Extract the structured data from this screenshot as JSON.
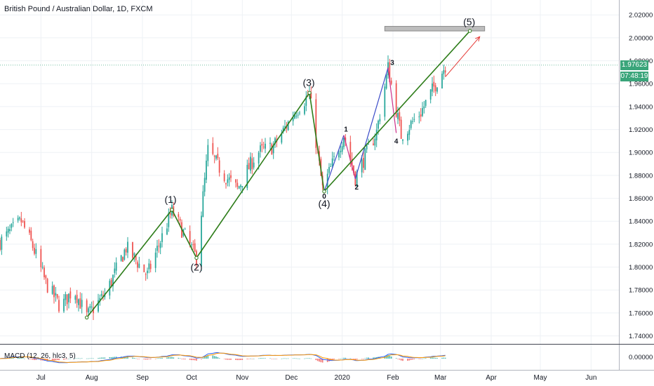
{
  "header": {
    "title": "British Pound / Australian Dollar, 1D, FXCM"
  },
  "price_tags": {
    "last_price": "1.97623",
    "countdown": "07:48:19"
  },
  "macd": {
    "label": "MACD (12, 26, hlc3, 5)",
    "zero_tick": "0.00000"
  },
  "colors": {
    "up": "#26a69a",
    "down": "#ef5350",
    "wave": "#2e7d1a",
    "sub_wave": "#3b4bc8",
    "sub_wave_pink": "#cc2e8a",
    "target_arrow": "#e53935",
    "price_badge": "#3aa57a",
    "macd_line": "#2962ff",
    "signal_line": "#ff9800"
  },
  "chart_data": {
    "type": "candlestick",
    "title": "British Pound / Australian Dollar, 1D, FXCM",
    "x_axis_ticks": [
      {
        "label": "Jul",
        "x": 0
      },
      {
        "label": "Aug",
        "x": 31
      },
      {
        "label": "Sep",
        "x": 62
      },
      {
        "label": "Oct",
        "x": 92
      },
      {
        "label": "Nov",
        "x": 123
      },
      {
        "label": "Dec",
        "x": 153
      },
      {
        "label": "2020",
        "x": 184
      },
      {
        "label": "Feb",
        "x": 215
      },
      {
        "label": "Mar",
        "x": 244
      },
      {
        "label": "Apr",
        "x": 275
      },
      {
        "label": "May",
        "x": 305
      },
      {
        "label": "Jun",
        "x": 336
      }
    ],
    "y_axis_ticks": [
      "2.02000",
      "2.00000",
      "1.98000",
      "1.96000",
      "1.94000",
      "1.92000",
      "1.90000",
      "1.88000",
      "1.86000",
      "1.84000",
      "1.82000",
      "1.80000",
      "1.78000",
      "1.76000",
      "1.74000"
    ],
    "ylim": [
      1.733,
      2.033
    ],
    "xlim": [
      -25,
      353
    ],
    "price_path": [
      {
        "x": -25,
        "y": 1.822
      },
      {
        "x": -12,
        "y": 1.84
      },
      {
        "x": -5,
        "y": 1.818
      },
      {
        "x": 3,
        "y": 1.786
      },
      {
        "x": 12,
        "y": 1.765
      },
      {
        "x": 20,
        "y": 1.781
      },
      {
        "x": 28,
        "y": 1.757
      },
      {
        "x": 40,
        "y": 1.778
      },
      {
        "x": 52,
        "y": 1.817
      },
      {
        "x": 65,
        "y": 1.793
      },
      {
        "x": 80,
        "y": 1.849
      },
      {
        "x": 95,
        "y": 1.808
      },
      {
        "x": 102,
        "y": 1.902
      },
      {
        "x": 112,
        "y": 1.88
      },
      {
        "x": 120,
        "y": 1.868
      },
      {
        "x": 132,
        "y": 1.9
      },
      {
        "x": 142,
        "y": 1.905
      },
      {
        "x": 155,
        "y": 1.935
      },
      {
        "x": 164,
        "y": 1.951
      },
      {
        "x": 172,
        "y": 1.868
      },
      {
        "x": 185,
        "y": 1.915
      },
      {
        "x": 192,
        "y": 1.878
      },
      {
        "x": 205,
        "y": 1.918
      },
      {
        "x": 212,
        "y": 1.974
      },
      {
        "x": 220,
        "y": 1.915
      },
      {
        "x": 232,
        "y": 1.935
      },
      {
        "x": 247,
        "y": 1.976
      }
    ],
    "wave_count": {
      "points": [
        {
          "label": "",
          "x": 28,
          "y": 1.756
        },
        {
          "label": "(1)",
          "x": 80,
          "y": 1.85
        },
        {
          "label": "(2)",
          "x": 95,
          "y": 1.808
        },
        {
          "label": "(3)",
          "x": 164,
          "y": 1.952
        },
        {
          "label": "(4)",
          "x": 173,
          "y": 1.866
        },
        {
          "label": "(5)",
          "x": 262,
          "y": 2.006
        }
      ]
    },
    "sub_waves": {
      "points": [
        {
          "label": "0",
          "x": 173,
          "y": 1.866
        },
        {
          "label": "1",
          "x": 185,
          "y": 1.915
        },
        {
          "label": "2",
          "x": 192,
          "y": 1.877
        },
        {
          "label": "3",
          "x": 212,
          "y": 1.974
        },
        {
          "label": "4",
          "x": 217,
          "y": 1.917
        }
      ]
    },
    "target_zone": {
      "x_start": 210,
      "x_end": 271,
      "y_low": 2.006,
      "y_high": 2.01
    },
    "target_arrow": {
      "from": {
        "x": 247,
        "y": 1.966
      },
      "to": {
        "x": 268,
        "y": 2.001
      }
    },
    "last_price": 1.97623
  }
}
